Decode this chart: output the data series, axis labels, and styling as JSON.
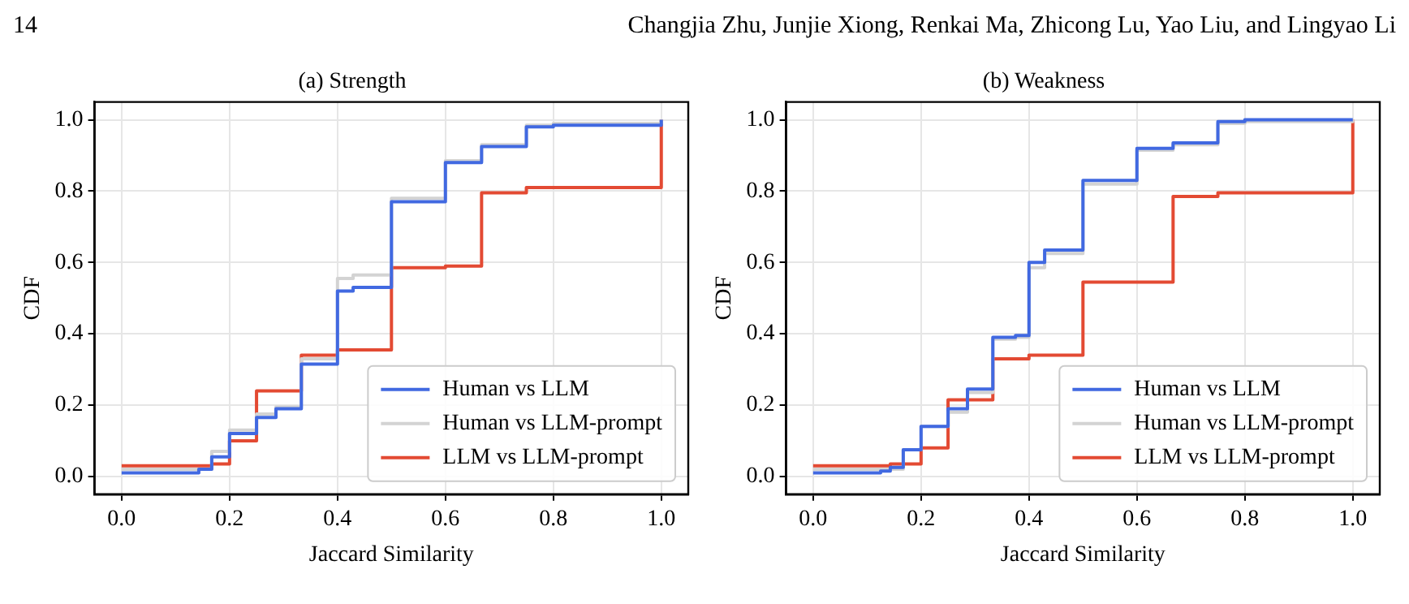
{
  "chart_data": [
    {
      "type": "step",
      "title": "(a) Strength",
      "xlabel": "Jaccard Similarity",
      "ylabel": "CDF",
      "annotations": [
        "14",
        "Changjia Zhu, Junjie Xiong, Renkai Ma, Zhicong Lu, Yao Liu, and Lingyao Li"
      ],
      "xlim": [
        -0.05,
        1.05
      ],
      "ylim": [
        -0.05,
        1.05
      ],
      "xticks": [
        {
          "value": 0,
          "label": "0.0"
        },
        {
          "value": 0.2,
          "label": "0.2"
        },
        {
          "value": 0.4,
          "label": "0.4"
        },
        {
          "value": 0.6,
          "label": "0.6"
        },
        {
          "value": 0.8,
          "label": "0.8"
        },
        {
          "value": 1,
          "label": "1.0"
        }
      ],
      "yticks": [
        {
          "value": 0,
          "label": "0.0"
        },
        {
          "value": 0.2,
          "label": "0.2"
        },
        {
          "value": 0.4,
          "label": "0.4"
        },
        {
          "value": 0.6,
          "label": "0.6"
        },
        {
          "value": 0.8,
          "label": "0.8"
        },
        {
          "value": 1,
          "label": "1.0"
        }
      ],
      "grid": true,
      "legend": "bottom right",
      "series": [
        {
          "name": "Human vs LLM",
          "color": "#4169e1",
          "x": [
            0,
            0.143,
            0.167,
            0.2,
            0.25,
            0.286,
            0.333,
            0.4,
            0.429,
            0.5,
            0.6,
            0.667,
            0.75,
            0.8,
            1.0
          ],
          "values": [
            0.01,
            0.02,
            0.055,
            0.12,
            0.165,
            0.19,
            0.315,
            0.52,
            0.53,
            0.77,
            0.88,
            0.925,
            0.98,
            0.985,
            1.0
          ]
        },
        {
          "name": "Human vs LLM-prompt",
          "color": "#d3d3d3",
          "x": [
            0,
            0.167,
            0.2,
            0.25,
            0.286,
            0.333,
            0.4,
            0.429,
            0.5,
            0.6,
            0.667,
            0.75,
            0.8,
            1.0
          ],
          "values": [
            0.02,
            0.07,
            0.13,
            0.175,
            0.195,
            0.33,
            0.555,
            0.565,
            0.78,
            0.885,
            0.93,
            0.985,
            0.99,
            1.0
          ]
        },
        {
          "name": "LLM vs LLM-prompt",
          "color": "#e34a33",
          "x": [
            0,
            0.167,
            0.2,
            0.25,
            0.333,
            0.4,
            0.5,
            0.6,
            0.667,
            0.75,
            1.0
          ],
          "values": [
            0.03,
            0.035,
            0.1,
            0.24,
            0.34,
            0.355,
            0.585,
            0.59,
            0.795,
            0.81,
            1.0
          ]
        }
      ]
    },
    {
      "type": "step",
      "title": "(b) Weakness",
      "xlabel": "Jaccard Similarity",
      "ylabel": "CDF",
      "xlim": [
        -0.05,
        1.05
      ],
      "ylim": [
        -0.05,
        1.05
      ],
      "xticks": [
        {
          "value": 0,
          "label": "0.0"
        },
        {
          "value": 0.2,
          "label": "0.2"
        },
        {
          "value": 0.4,
          "label": "0.4"
        },
        {
          "value": 0.6,
          "label": "0.6"
        },
        {
          "value": 0.8,
          "label": "0.8"
        },
        {
          "value": 1,
          "label": "1.0"
        }
      ],
      "yticks": [
        {
          "value": 0,
          "label": "0.0"
        },
        {
          "value": 0.2,
          "label": "0.2"
        },
        {
          "value": 0.4,
          "label": "0.4"
        },
        {
          "value": 0.6,
          "label": "0.6"
        },
        {
          "value": 0.8,
          "label": "0.8"
        },
        {
          "value": 1,
          "label": "1.0"
        }
      ],
      "grid": true,
      "legend": "bottom right",
      "series": [
        {
          "name": "Human vs LLM",
          "color": "#4169e1",
          "x": [
            0,
            0.125,
            0.143,
            0.167,
            0.2,
            0.25,
            0.286,
            0.333,
            0.375,
            0.4,
            0.429,
            0.5,
            0.6,
            0.667,
            0.75,
            0.8,
            1.0
          ],
          "values": [
            0.01,
            0.015,
            0.025,
            0.075,
            0.14,
            0.19,
            0.245,
            0.39,
            0.395,
            0.6,
            0.635,
            0.83,
            0.92,
            0.935,
            0.995,
            1.0,
            1.0
          ]
        },
        {
          "name": "Human vs LLM-prompt",
          "color": "#d3d3d3",
          "x": [
            0,
            0.167,
            0.2,
            0.25,
            0.286,
            0.333,
            0.375,
            0.4,
            0.429,
            0.5,
            0.6,
            0.667,
            0.75,
            0.8,
            1.0
          ],
          "values": [
            0.02,
            0.075,
            0.14,
            0.18,
            0.235,
            0.385,
            0.39,
            0.585,
            0.625,
            0.82,
            0.915,
            0.93,
            0.99,
            0.995,
            1.0
          ]
        },
        {
          "name": "LLM vs LLM-prompt",
          "color": "#e34a33",
          "x": [
            0,
            0.143,
            0.2,
            0.25,
            0.333,
            0.4,
            0.5,
            0.667,
            0.75,
            1.0
          ],
          "values": [
            0.03,
            0.035,
            0.08,
            0.215,
            0.33,
            0.34,
            0.545,
            0.785,
            0.795,
            1.0
          ]
        }
      ]
    }
  ]
}
